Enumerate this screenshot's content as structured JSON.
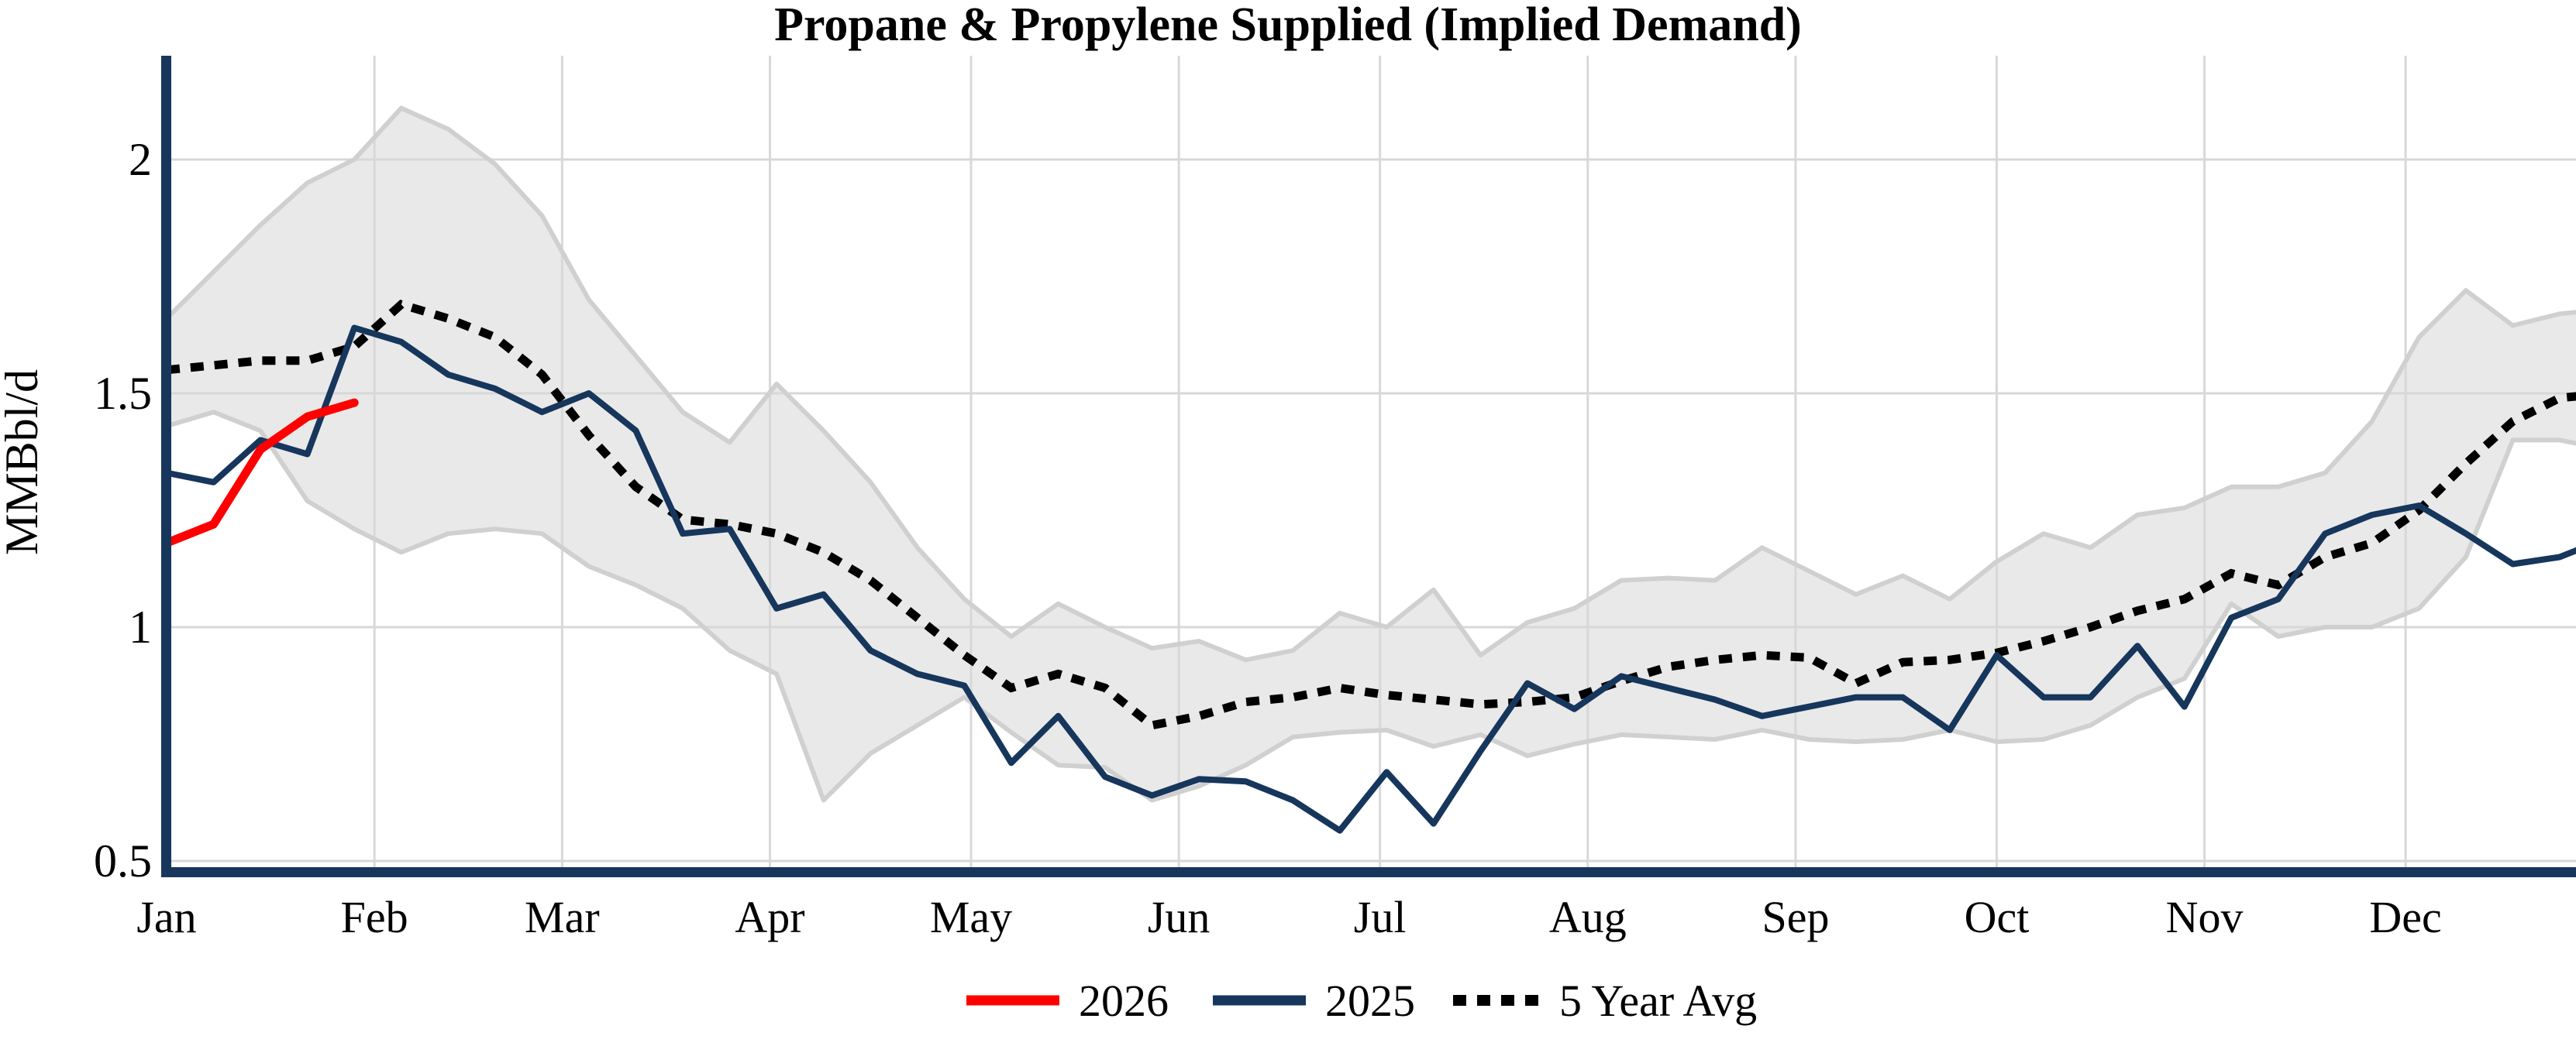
{
  "title": "Propane & Propylene Supplied (Implied Demand)",
  "chart_data": {
    "type": "line",
    "title": "Propane & Propylene Supplied (Implied Demand)",
    "ylabel": "MMBbl/d",
    "xlabel": "",
    "ylim": [
      0.47,
      2.2
    ],
    "yticks": [
      0.5,
      1,
      1.5,
      2
    ],
    "ytick_labels": [
      "0.5",
      "1",
      "1.5",
      "2"
    ],
    "x_months": [
      "Jan",
      "Feb",
      "Mar",
      "Apr",
      "May",
      "Jun",
      "Jul",
      "Aug",
      "Sep",
      "Oct",
      "Nov",
      "Dec"
    ],
    "x_resolution": "weekly",
    "grid": true,
    "legend_position": "bottom-center",
    "colors": {
      "y2026": "#ff0000",
      "y2025": "#16365c",
      "avg5": "#000000",
      "band_fill": "#e9e9e9",
      "band_edge": "#d0d0d0",
      "gridline": "#d8d8d8",
      "axis": "#16365c"
    },
    "series": [
      {
        "name": "5 Year Range",
        "type": "band",
        "upper": [
          1.66,
          1.76,
          1.86,
          1.95,
          2.0,
          2.11,
          2.065,
          1.99,
          1.88,
          1.7,
          1.58,
          1.46,
          1.395,
          1.52,
          1.42,
          1.31,
          1.17,
          1.06,
          0.98,
          1.05,
          1.0,
          0.955,
          0.97,
          0.93,
          0.95,
          1.03,
          1.0,
          1.08,
          0.94,
          1.01,
          1.04,
          1.1,
          1.105,
          1.1,
          1.17,
          1.12,
          1.07,
          1.11,
          1.06,
          1.14,
          1.2,
          1.17,
          1.24,
          1.255,
          1.3,
          1.3,
          1.33,
          1.44,
          1.62,
          1.72,
          1.645,
          1.67,
          1.68
        ],
        "lower": [
          1.43,
          1.46,
          1.42,
          1.27,
          1.21,
          1.16,
          1.2,
          1.21,
          1.2,
          1.13,
          1.09,
          1.04,
          0.95,
          0.9,
          0.63,
          0.73,
          0.79,
          0.85,
          0.775,
          0.705,
          0.7,
          0.63,
          0.66,
          0.705,
          0.765,
          0.775,
          0.78,
          0.745,
          0.77,
          0.725,
          0.75,
          0.77,
          0.765,
          0.76,
          0.78,
          0.76,
          0.755,
          0.76,
          0.78,
          0.755,
          0.76,
          0.79,
          0.85,
          0.89,
          1.05,
          0.98,
          1.0,
          1.0,
          1.04,
          1.15,
          1.4,
          1.4,
          1.38
        ]
      },
      {
        "name": "5 Year Avg",
        "type": "dashed-line",
        "values": [
          1.55,
          1.56,
          1.57,
          1.57,
          1.6,
          1.69,
          1.66,
          1.62,
          1.54,
          1.41,
          1.3,
          1.23,
          1.22,
          1.2,
          1.16,
          1.1,
          1.02,
          0.94,
          0.87,
          0.9,
          0.87,
          0.79,
          0.81,
          0.84,
          0.85,
          0.87,
          0.855,
          0.845,
          0.835,
          0.84,
          0.85,
          0.885,
          0.915,
          0.93,
          0.94,
          0.935,
          0.88,
          0.925,
          0.93,
          0.945,
          0.97,
          1.0,
          1.035,
          1.06,
          1.115,
          1.09,
          1.15,
          1.18,
          1.25,
          1.35,
          1.44,
          1.49,
          1.5
        ]
      },
      {
        "name": "2025",
        "type": "line",
        "values": [
          1.33,
          1.31,
          1.4,
          1.37,
          1.64,
          1.61,
          1.54,
          1.51,
          1.46,
          1.5,
          1.42,
          1.2,
          1.21,
          1.04,
          1.07,
          0.95,
          0.9,
          0.875,
          0.71,
          0.81,
          0.68,
          0.64,
          0.675,
          0.67,
          0.63,
          0.565,
          0.69,
          0.58,
          0.735,
          0.88,
          0.825,
          0.895,
          0.87,
          0.845,
          0.81,
          0.83,
          0.85,
          0.85,
          0.78,
          0.94,
          0.85,
          0.85,
          0.96,
          0.83,
          1.02,
          1.06,
          1.2,
          1.24,
          1.26,
          1.2,
          1.135,
          1.15,
          1.19
        ]
      },
      {
        "name": "2026",
        "type": "line",
        "values": [
          1.18,
          1.22,
          1.38,
          1.45,
          1.48
        ]
      }
    ],
    "legend": [
      {
        "label": "2026",
        "color": "#ff0000",
        "style": "solid"
      },
      {
        "label": "2025",
        "color": "#16365c",
        "style": "solid"
      },
      {
        "label": "5 Year Avg",
        "color": "#000000",
        "style": "dotted"
      }
    ]
  }
}
